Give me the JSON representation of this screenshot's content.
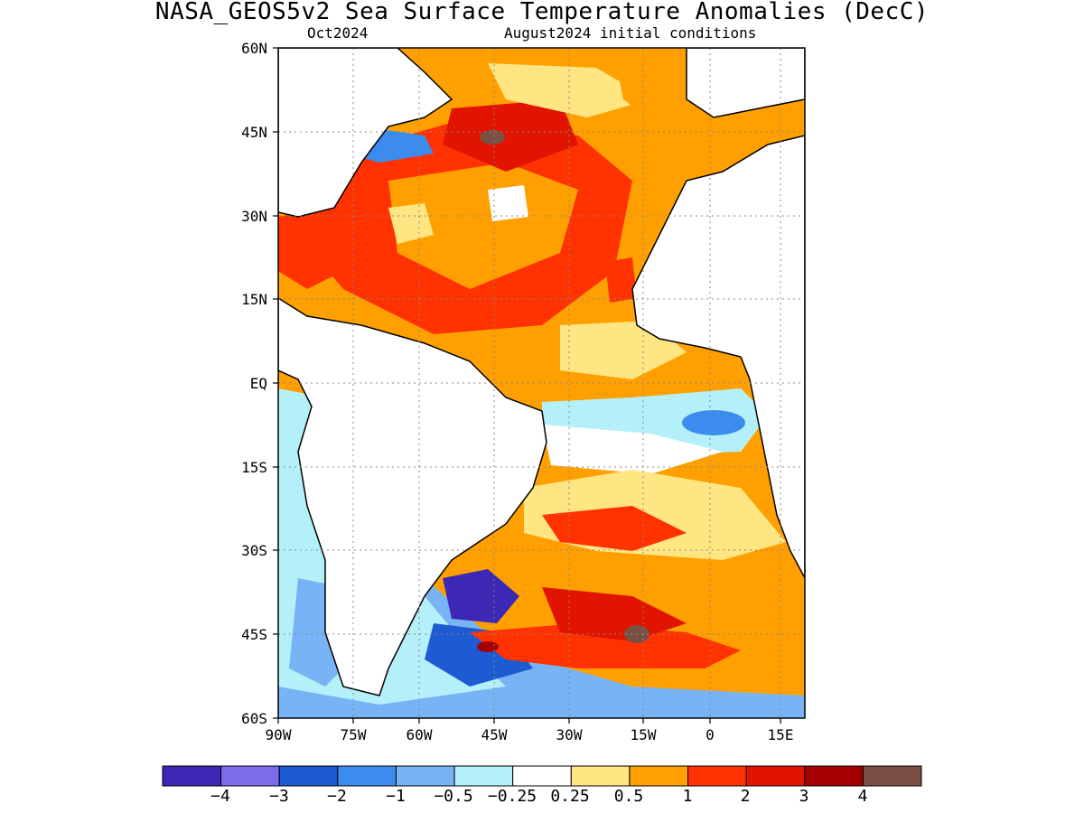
{
  "title": "NASA_GEOS5v2 Sea Surface Temperature Anomalies (DecC)",
  "subtitle_left": "Oct2024",
  "subtitle_right": "August2024 initial conditions",
  "lat_labels": [
    "60N",
    "45N",
    "30N",
    "15N",
    "EQ",
    "15S",
    "30S",
    "45S",
    "60S"
  ],
  "lon_labels": [
    "90W",
    "75W",
    "60W",
    "45W",
    "30W",
    "15W",
    "0",
    "15E"
  ],
  "map_extent": {
    "lon": [
      -90,
      15
    ],
    "lat": [
      -60,
      60
    ]
  },
  "colorbar": {
    "colors": [
      "#3c28b4",
      "#7c6cec",
      "#1e5ad2",
      "#3c8cf0",
      "#78b4f5",
      "#b4f0fa",
      "#ffffff",
      "#ffe682",
      "#ffa000",
      "#ff3200",
      "#e11400",
      "#a50000",
      "#7a5045"
    ],
    "labels": [
      "−4",
      "−3",
      "−2",
      "−1",
      "−0.5",
      "−0.25",
      "0.25",
      "0.5",
      "1",
      "2",
      "3",
      "4"
    ]
  }
}
